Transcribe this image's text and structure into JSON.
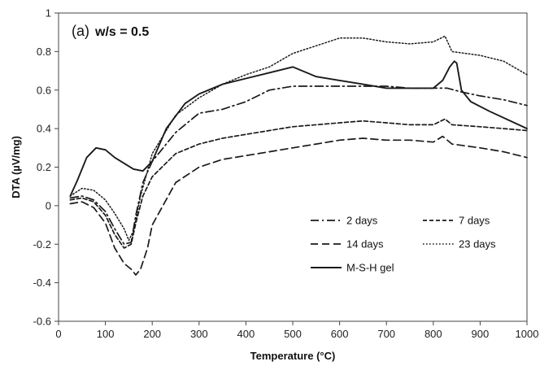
{
  "chart_data": {
    "type": "line",
    "annotation_prefix": "(a)",
    "annotation_main": "w/s = 0.5",
    "xlabel": "Temperature (°C)",
    "ylabel": "DTA (µV/mg)",
    "xlim": [
      0,
      1000
    ],
    "ylim": [
      -0.6,
      1.0
    ],
    "xticks": [
      0,
      100,
      200,
      300,
      400,
      500,
      600,
      700,
      800,
      900,
      1000
    ],
    "yticks": [
      -0.6,
      -0.4,
      -0.2,
      0,
      0.2,
      0.4,
      0.6,
      0.8,
      1
    ],
    "ytick_labels": [
      "-0.6",
      "-0.4",
      "-0.2",
      "0",
      "0.2",
      "0.4",
      "0.6",
      "0.8",
      "1"
    ],
    "grid": false,
    "legend_position": "center-right",
    "series": [
      {
        "name": "2 days",
        "dash": "dashdot",
        "x": [
          25,
          50,
          75,
          100,
          120,
          140,
          155,
          165,
          180,
          200,
          250,
          300,
          350,
          400,
          450,
          500,
          550,
          600,
          650,
          700,
          750,
          800,
          830,
          860,
          900,
          950,
          1000
        ],
        "y": [
          0.04,
          0.05,
          0.03,
          -0.03,
          -0.12,
          -0.2,
          -0.19,
          -0.05,
          0.12,
          0.23,
          0.38,
          0.48,
          0.5,
          0.54,
          0.6,
          0.62,
          0.62,
          0.62,
          0.62,
          0.62,
          0.61,
          0.61,
          0.61,
          0.59,
          0.57,
          0.55,
          0.52
        ]
      },
      {
        "name": "7 days",
        "dash": "shortdash",
        "x": [
          25,
          50,
          75,
          100,
          120,
          140,
          155,
          165,
          180,
          200,
          250,
          300,
          350,
          400,
          450,
          500,
          550,
          600,
          650,
          700,
          750,
          800,
          825,
          840,
          900,
          950,
          1000
        ],
        "y": [
          0.03,
          0.04,
          0.02,
          -0.05,
          -0.15,
          -0.22,
          -0.2,
          -0.09,
          0.05,
          0.15,
          0.27,
          0.32,
          0.35,
          0.37,
          0.39,
          0.41,
          0.42,
          0.43,
          0.44,
          0.43,
          0.42,
          0.42,
          0.45,
          0.42,
          0.41,
          0.4,
          0.39
        ]
      },
      {
        "name": "14 days",
        "dash": "longdash",
        "x": [
          25,
          50,
          75,
          100,
          120,
          140,
          155,
          165,
          175,
          190,
          200,
          250,
          300,
          350,
          400,
          450,
          500,
          550,
          600,
          650,
          700,
          750,
          800,
          820,
          840,
          900,
          950,
          1000
        ],
        "y": [
          0.01,
          0.02,
          -0.01,
          -0.09,
          -0.22,
          -0.3,
          -0.33,
          -0.36,
          -0.33,
          -0.22,
          -0.1,
          0.12,
          0.2,
          0.24,
          0.26,
          0.28,
          0.3,
          0.32,
          0.34,
          0.35,
          0.34,
          0.34,
          0.33,
          0.36,
          0.32,
          0.3,
          0.28,
          0.25
        ]
      },
      {
        "name": "23 days",
        "dash": "dotted",
        "x": [
          25,
          50,
          75,
          100,
          120,
          140,
          150,
          160,
          175,
          200,
          250,
          300,
          350,
          400,
          450,
          500,
          550,
          600,
          650,
          700,
          750,
          800,
          825,
          840,
          900,
          950,
          1000
        ],
        "y": [
          0.05,
          0.09,
          0.08,
          0.03,
          -0.04,
          -0.12,
          -0.18,
          -0.13,
          0.05,
          0.27,
          0.47,
          0.56,
          0.63,
          0.68,
          0.72,
          0.79,
          0.83,
          0.87,
          0.87,
          0.85,
          0.84,
          0.85,
          0.88,
          0.8,
          0.78,
          0.75,
          0.68
        ]
      },
      {
        "name": "M-S-H gel",
        "dash": "solid",
        "x": [
          25,
          40,
          60,
          80,
          100,
          120,
          140,
          160,
          180,
          200,
          230,
          270,
          300,
          350,
          400,
          450,
          500,
          550,
          600,
          650,
          700,
          750,
          800,
          820,
          835,
          845,
          850,
          860,
          880,
          920,
          1000
        ],
        "y": [
          0.05,
          0.13,
          0.25,
          0.3,
          0.29,
          0.25,
          0.22,
          0.19,
          0.18,
          0.23,
          0.4,
          0.53,
          0.58,
          0.63,
          0.66,
          0.69,
          0.72,
          0.67,
          0.65,
          0.63,
          0.61,
          0.61,
          0.61,
          0.65,
          0.72,
          0.75,
          0.74,
          0.6,
          0.54,
          0.49,
          0.4
        ]
      }
    ]
  }
}
